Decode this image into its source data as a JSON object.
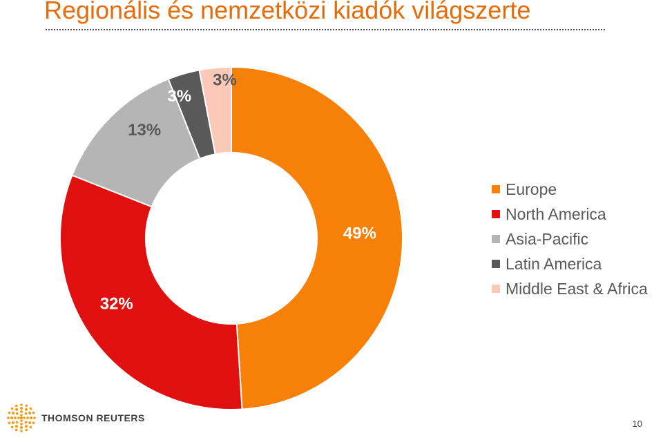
{
  "slide": {
    "title": "Regionális és nemzetközi kiadók világszerte",
    "page_number": "10"
  },
  "logo": {
    "text": "THOMSON REUTERS",
    "icon": "thomson-reuters-logo-icon",
    "color": "#f39c12"
  },
  "chart_data": {
    "type": "pie",
    "variant": "donut",
    "title": "",
    "categories": [
      "Europe",
      "North America",
      "Asia-Pacific",
      "Latin America",
      "Middle East & Africa"
    ],
    "values": [
      49,
      32,
      13,
      3,
      3
    ],
    "labels": [
      "49%",
      "32%",
      "13%",
      "3%",
      "3%"
    ],
    "colors": [
      "#f78009",
      "#e01010",
      "#b5b5b5",
      "#595959",
      "#fcc8b8"
    ],
    "label_colors": [
      "#ffffff",
      "#ffffff",
      "#595959",
      "#ffffff",
      "#595959"
    ],
    "legend_position": "right"
  }
}
